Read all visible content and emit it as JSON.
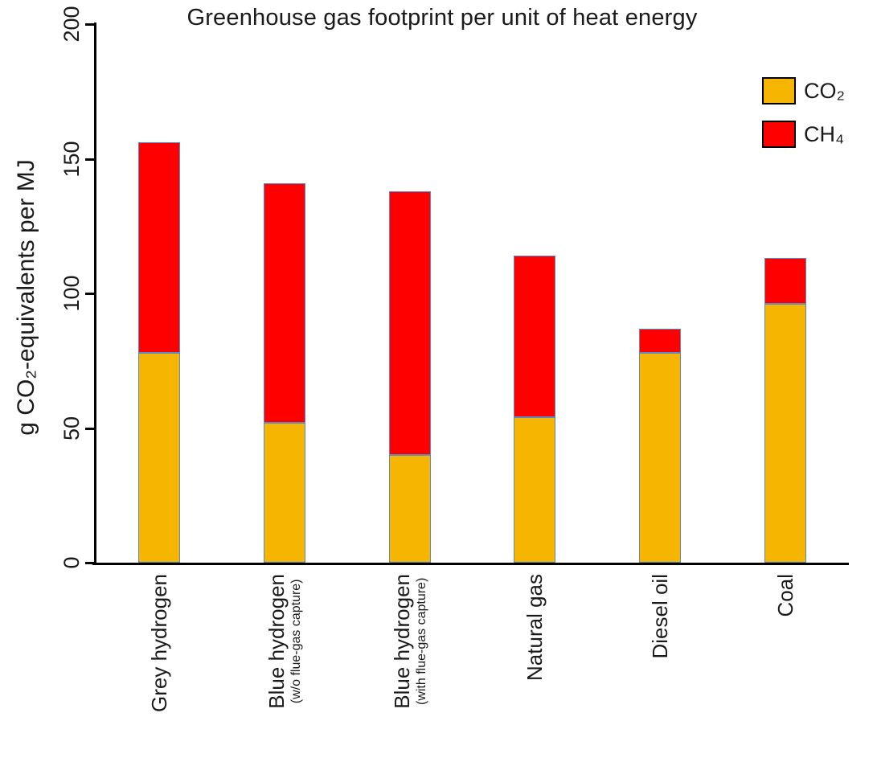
{
  "chart_data": {
    "type": "bar",
    "stacked": true,
    "title": "Greenhouse gas footprint per unit of heat energy",
    "ylabel": "g CO₂-equivalents per MJ",
    "ylim": [
      0,
      200
    ],
    "yticks": [
      0,
      50,
      100,
      150,
      200
    ],
    "grid": false,
    "legend_position": "top-right",
    "bar_border_color": "#5a8ac6",
    "categories": [
      {
        "label": "Grey hydrogen",
        "sublabel": ""
      },
      {
        "label": "Blue hydrogen",
        "sublabel": "(w/o flue-gas capture)"
      },
      {
        "label": "Blue hydrogen",
        "sublabel": "(with flue-gas capture)"
      },
      {
        "label": "Natural gas",
        "sublabel": ""
      },
      {
        "label": "Diesel oil",
        "sublabel": ""
      },
      {
        "label": "Coal",
        "sublabel": ""
      }
    ],
    "series": [
      {
        "name": "CO₂",
        "color": "#F6B500",
        "values": [
          78,
          52,
          40,
          54,
          78,
          96
        ]
      },
      {
        "name": "CH₄",
        "color": "#FE0000",
        "values": [
          78,
          89,
          98,
          60,
          9,
          17
        ]
      }
    ]
  }
}
